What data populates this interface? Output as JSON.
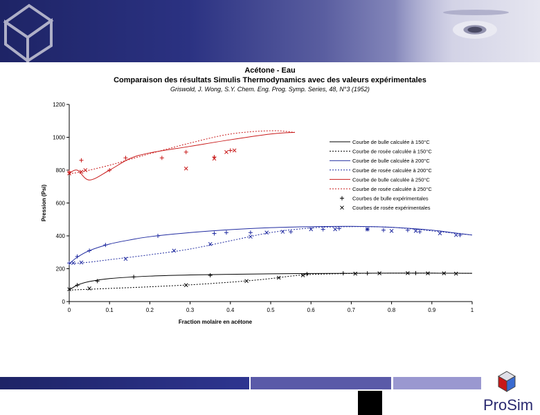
{
  "header": {
    "logo_icon": "cube-wireframe-icon"
  },
  "titles": {
    "title": "Acétone - Eau",
    "subtitle": "Comparaison des résultats Simulis Thermodynamics avec des valeurs expérimentales",
    "reference": "Griswold, J. Wong, S.Y. Chem. Eng. Prog. Symp. Series, 48, N°3 (1952)"
  },
  "footer": {
    "brand": "ProSim",
    "brand_icon": "prosim-cube-icon"
  },
  "chart_data": {
    "type": "scatter",
    "xlabel": "Fraction molaire en acétone",
    "ylabel": "Pression (Psi)",
    "xlim": [
      0,
      1
    ],
    "ylim": [
      0,
      1200
    ],
    "xticks": [
      "0",
      "0.1",
      "0.2",
      "0.3",
      "0.4",
      "0.5",
      "0.6",
      "0.7",
      "0.8",
      "0.9",
      "1"
    ],
    "yticks": [
      "0",
      "200",
      "400",
      "600",
      "800",
      "1000",
      "1200"
    ],
    "colors": {
      "150": "#000000",
      "200": "#1f2aa0",
      "250": "#c81818"
    },
    "series": [
      {
        "name": "Courbe de bulle calculée à 150°C",
        "style": "solid",
        "color_key": "150",
        "x": [
          0,
          0.02,
          0.05,
          0.1,
          0.2,
          0.3,
          0.4,
          0.5,
          0.6,
          0.7,
          0.8,
          0.9,
          1.0
        ],
        "y": [
          70,
          100,
          122,
          140,
          155,
          162,
          166,
          169,
          171,
          172,
          173,
          173,
          172
        ]
      },
      {
        "name": "Courbe de rosée calculée à 150°C",
        "style": "dotted",
        "color_key": "150",
        "x": [
          0,
          0.1,
          0.2,
          0.3,
          0.4,
          0.45,
          0.5,
          0.55,
          0.6,
          0.7,
          0.8,
          0.9,
          1.0
        ],
        "y": [
          70,
          80,
          90,
          102,
          118,
          128,
          140,
          155,
          165,
          171,
          173,
          173,
          172
        ]
      },
      {
        "name": "Courbe de bulle calculée à 200°C",
        "style": "solid",
        "color_key": "200",
        "x": [
          0,
          0.02,
          0.05,
          0.1,
          0.15,
          0.2,
          0.3,
          0.4,
          0.5,
          0.6,
          0.7,
          0.8,
          0.9,
          0.95,
          1.0
        ],
        "y": [
          230,
          270,
          310,
          350,
          375,
          395,
          420,
          438,
          450,
          456,
          458,
          452,
          435,
          420,
          405
        ]
      },
      {
        "name": "Courbe de rosée calculée à 200°C",
        "style": "dotted",
        "color_key": "200",
        "x": [
          0,
          0.05,
          0.1,
          0.2,
          0.3,
          0.4,
          0.5,
          0.6,
          0.7,
          0.8,
          0.9,
          1.0
        ],
        "y": [
          230,
          240,
          255,
          285,
          320,
          370,
          420,
          448,
          456,
          452,
          430,
          405
        ]
      },
      {
        "name": "Courbe de bulle calculée à 250°C",
        "style": "solid",
        "color_key": "250",
        "x": [
          0,
          0.02,
          0.05,
          0.1,
          0.15,
          0.2,
          0.3,
          0.4,
          0.5,
          0.56
        ],
        "y": [
          780,
          800,
          740,
          800,
          870,
          905,
          945,
          985,
          1020,
          1030
        ]
      },
      {
        "name": "Courbe de rosée calculée à 250°C",
        "style": "dotted",
        "color_key": "250",
        "x": [
          0,
          0.02,
          0.05,
          0.1,
          0.15,
          0.2,
          0.3,
          0.4,
          0.5,
          0.56
        ],
        "y": [
          780,
          785,
          800,
          830,
          865,
          900,
          965,
          1020,
          1040,
          1030
        ]
      },
      {
        "name": "Courbes de bulle expérimentales",
        "marker": "+",
        "color_key": "mixed",
        "points": [
          [
            0.02,
            100,
            "150"
          ],
          [
            0.07,
            125,
            "150"
          ],
          [
            0.16,
            150,
            "150"
          ],
          [
            0.35,
            160,
            "150"
          ],
          [
            0.59,
            168,
            "150"
          ],
          [
            0.68,
            172,
            "150"
          ],
          [
            0.74,
            172,
            "150"
          ],
          [
            0.86,
            173,
            "150"
          ],
          [
            0.0,
            235,
            "200"
          ],
          [
            0.02,
            275,
            "200"
          ],
          [
            0.05,
            310,
            "200"
          ],
          [
            0.09,
            345,
            "200"
          ],
          [
            0.22,
            400,
            "200"
          ],
          [
            0.36,
            415,
            "200"
          ],
          [
            0.39,
            420,
            "200"
          ],
          [
            0.45,
            420,
            "200"
          ],
          [
            0.55,
            425,
            "200"
          ],
          [
            0.63,
            440,
            "200"
          ],
          [
            0.67,
            445,
            "200"
          ],
          [
            0.74,
            440,
            "200"
          ],
          [
            0.78,
            435,
            "200"
          ],
          [
            0.84,
            435,
            "200"
          ],
          [
            0.87,
            425,
            "200"
          ],
          [
            0.97,
            405,
            "200"
          ],
          [
            0.0,
            790,
            "250"
          ],
          [
            0.03,
            860,
            "250"
          ],
          [
            0.1,
            800,
            "250"
          ],
          [
            0.14,
            875,
            "250"
          ],
          [
            0.23,
            875,
            "250"
          ],
          [
            0.29,
            910,
            "250"
          ],
          [
            0.36,
            880,
            "250"
          ],
          [
            0.4,
            920,
            "250"
          ]
        ]
      },
      {
        "name": "Courbes de rosée expérimentales",
        "marker": "x",
        "color_key": "mixed",
        "points": [
          [
            0.0,
            75,
            "150"
          ],
          [
            0.05,
            80,
            "150"
          ],
          [
            0.29,
            100,
            "150"
          ],
          [
            0.44,
            125,
            "150"
          ],
          [
            0.52,
            145,
            "150"
          ],
          [
            0.58,
            160,
            "150"
          ],
          [
            0.71,
            170,
            "150"
          ],
          [
            0.77,
            172,
            "150"
          ],
          [
            0.84,
            173,
            "150"
          ],
          [
            0.89,
            172,
            "150"
          ],
          [
            0.93,
            172,
            "150"
          ],
          [
            0.96,
            170,
            "150"
          ],
          [
            0.01,
            235,
            "200"
          ],
          [
            0.03,
            238,
            "200"
          ],
          [
            0.14,
            260,
            "200"
          ],
          [
            0.26,
            310,
            "200"
          ],
          [
            0.35,
            350,
            "200"
          ],
          [
            0.45,
            395,
            "200"
          ],
          [
            0.49,
            420,
            "200"
          ],
          [
            0.53,
            425,
            "200"
          ],
          [
            0.6,
            440,
            "200"
          ],
          [
            0.66,
            440,
            "200"
          ],
          [
            0.74,
            440,
            "200"
          ],
          [
            0.8,
            430,
            "200"
          ],
          [
            0.86,
            430,
            "200"
          ],
          [
            0.92,
            415,
            "200"
          ],
          [
            0.96,
            405,
            "200"
          ],
          [
            0.0,
            780,
            "250"
          ],
          [
            0.03,
            790,
            "250"
          ],
          [
            0.04,
            800,
            "250"
          ],
          [
            0.29,
            810,
            "250"
          ],
          [
            0.36,
            870,
            "250"
          ],
          [
            0.39,
            910,
            "250"
          ],
          [
            0.41,
            920,
            "250"
          ]
        ]
      }
    ]
  }
}
